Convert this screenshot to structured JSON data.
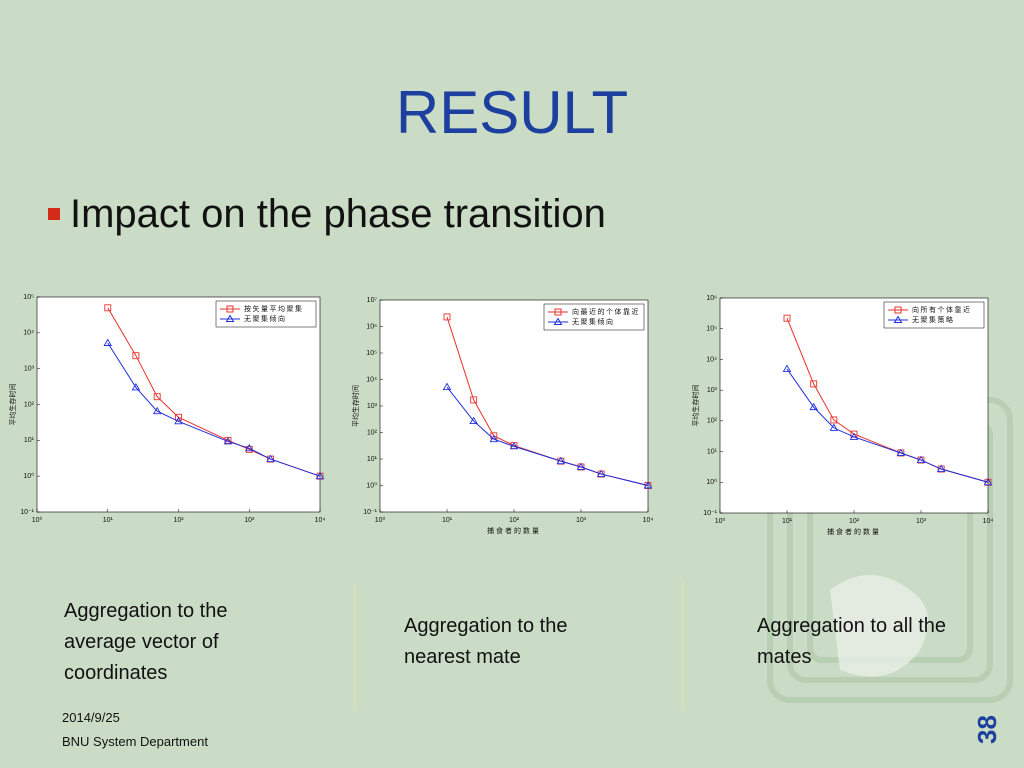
{
  "title": "RESULT",
  "bullet": "Impact on the phase transition",
  "captions": [
    "Aggregation to the average vector of coordinates",
    "Aggregation to the nearest mate",
    "Aggregation to all the mates"
  ],
  "footer": {
    "date": "2014/9/25",
    "department": "BNU System Department",
    "page": "38"
  },
  "chart_data": [
    {
      "type": "line",
      "log_x": true,
      "log_y": true,
      "ylabel": "平均生存时间",
      "legend": "upper right",
      "x": [
        10,
        25,
        50,
        100,
        500,
        1000,
        2000,
        10000
      ],
      "series": [
        {
          "name": "按矢量平均聚集",
          "color": "#e8322a",
          "marker": "square",
          "values": [
            50000,
            2300,
            165,
            44,
            10,
            5.6,
            3,
            1
          ]
        },
        {
          "name": "无聚集倾向",
          "color": "#1f2fe0",
          "marker": "triangle",
          "values": [
            5200,
            300,
            65,
            34,
            9.3,
            6,
            3,
            1
          ]
        }
      ],
      "xlim": [
        1,
        10000
      ],
      "xticks": [
        {
          "value": 1,
          "label": "10⁰"
        },
        {
          "value": 10,
          "label": "10¹"
        },
        {
          "value": 100,
          "label": "10²"
        },
        {
          "value": 1000,
          "label": "10³"
        },
        {
          "value": 10000,
          "label": "10⁴"
        }
      ],
      "ylim": [
        0.1,
        100000
      ],
      "yticks": [
        {
          "value": 0.1,
          "label": "10⁻¹"
        },
        {
          "value": 1,
          "label": "10⁰"
        },
        {
          "value": 10,
          "label": "10¹"
        },
        {
          "value": 100,
          "label": "10²"
        },
        {
          "value": 1000,
          "label": "10³"
        },
        {
          "value": 10000,
          "label": "10⁴"
        },
        {
          "value": 100000,
          "label": "10⁵"
        }
      ]
    },
    {
      "type": "line",
      "log_x": true,
      "log_y": true,
      "xlabel": "捕食者的数量",
      "ylabel": "平均生存时间",
      "legend": "upper right",
      "x": [
        10,
        25,
        50,
        100,
        500,
        1000,
        2000,
        10000
      ],
      "series": [
        {
          "name": "向最近的个体靠近",
          "color": "#e8322a",
          "marker": "square",
          "values": [
            2300000,
            1700,
            75,
            32,
            8.3,
            5,
            2.7,
            1
          ]
        },
        {
          "name": "无聚集倾向",
          "color": "#1f2fe0",
          "marker": "triangle",
          "values": [
            5200,
            270,
            56,
            30,
            8.3,
            5,
            2.7,
            1
          ]
        }
      ],
      "xlim": [
        1,
        10000
      ],
      "xticks": [
        {
          "value": 1,
          "label": "10⁰"
        },
        {
          "value": 10,
          "label": "10¹"
        },
        {
          "value": 100,
          "label": "10²"
        },
        {
          "value": 1000,
          "label": "10³"
        },
        {
          "value": 10000,
          "label": "10⁴"
        }
      ],
      "ylim": [
        0.1,
        10000000
      ],
      "yticks": [
        {
          "value": 0.1,
          "label": "10⁻¹"
        },
        {
          "value": 1,
          "label": "10⁰"
        },
        {
          "value": 10,
          "label": "10¹"
        },
        {
          "value": 100,
          "label": "10²"
        },
        {
          "value": 1000,
          "label": "10³"
        },
        {
          "value": 10000,
          "label": "10⁴"
        },
        {
          "value": 100000,
          "label": "10⁵"
        },
        {
          "value": 1000000,
          "label": "10⁶"
        },
        {
          "value": 10000000,
          "label": "10⁷"
        }
      ]
    },
    {
      "type": "line",
      "log_x": true,
      "log_y": true,
      "xlabel": "捕食者的数量",
      "ylabel": "平均生存时间",
      "legend": "upper right",
      "x": [
        10,
        25,
        50,
        100,
        500,
        1000,
        2000,
        10000
      ],
      "series": [
        {
          "name": "向所有个体靠近",
          "color": "#e8322a",
          "marker": "square",
          "values": [
            220000,
            1600,
            107,
            37,
            9,
            5.3,
            2.7,
            1
          ]
        },
        {
          "name": "无聚集策略",
          "color": "#1f2fe0",
          "marker": "triangle",
          "values": [
            4900,
            280,
            59,
            30,
            9,
            5.3,
            2.7,
            1
          ]
        }
      ],
      "xlim": [
        1,
        10000
      ],
      "xticks": [
        {
          "value": 1,
          "label": "10⁰"
        },
        {
          "value": 10,
          "label": "10¹"
        },
        {
          "value": 100,
          "label": "10²"
        },
        {
          "value": 1000,
          "label": "10³"
        },
        {
          "value": 10000,
          "label": "10⁴"
        }
      ],
      "ylim": [
        0.1,
        1000000
      ],
      "yticks": [
        {
          "value": 0.1,
          "label": "10⁻¹"
        },
        {
          "value": 1,
          "label": "10⁰"
        },
        {
          "value": 10,
          "label": "10¹"
        },
        {
          "value": 100,
          "label": "10²"
        },
        {
          "value": 1000,
          "label": "10³"
        },
        {
          "value": 10000,
          "label": "10⁴"
        },
        {
          "value": 100000,
          "label": "10⁵"
        },
        {
          "value": 1000000,
          "label": "10⁶"
        }
      ]
    }
  ]
}
